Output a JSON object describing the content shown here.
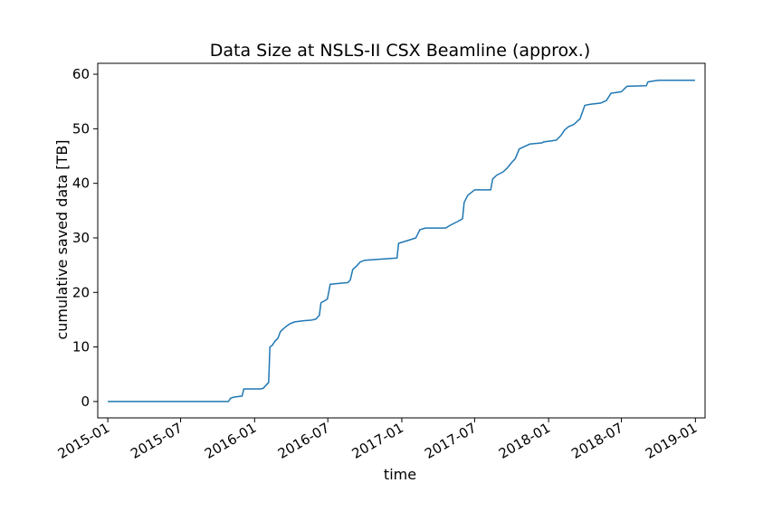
{
  "chart_data": {
    "type": "line",
    "title": "Data Size at NSLS-II CSX Beamline (approx.)",
    "xlabel": "time",
    "ylabel": "cumulative saved data [TB]",
    "xlim": [
      "2014-12-07",
      "2019-01-25"
    ],
    "ylim": [
      -3,
      62
    ],
    "x_ticks": [
      "2015-01",
      "2015-07",
      "2016-01",
      "2016-07",
      "2017-01",
      "2017-07",
      "2018-01",
      "2018-07",
      "2019-01"
    ],
    "y_ticks": [
      0,
      10,
      20,
      30,
      40,
      50,
      60
    ],
    "grid": false,
    "line_color": "#1f77b4",
    "series": [
      {
        "x": [
          "2015-01-01",
          "2015-10-28",
          "2015-11-02",
          "2015-11-10",
          "2015-11-20",
          "2015-12-01",
          "2015-12-05",
          "2016-01-15",
          "2016-01-22",
          "2016-02-05",
          "2016-02-08",
          "2016-02-14",
          "2016-02-20",
          "2016-02-28",
          "2016-03-05",
          "2016-03-12",
          "2016-03-20",
          "2016-03-30",
          "2016-04-10",
          "2016-05-01",
          "2016-05-20",
          "2016-06-01",
          "2016-06-10",
          "2016-06-14",
          "2016-06-24",
          "2016-06-30",
          "2016-07-07",
          "2016-08-20",
          "2016-08-26",
          "2016-09-01",
          "2016-09-10",
          "2016-09-20",
          "2016-10-01",
          "2016-12-20",
          "2016-12-24",
          "2017-01-15",
          "2017-02-05",
          "2017-02-15",
          "2017-03-01",
          "2017-04-20",
          "2017-05-01",
          "2017-05-20",
          "2017-06-01",
          "2017-06-05",
          "2017-06-14",
          "2017-07-01",
          "2017-08-10",
          "2017-08-15",
          "2017-08-25",
          "2017-09-10",
          "2017-09-20",
          "2017-10-01",
          "2017-10-10",
          "2017-10-20",
          "2017-11-15",
          "2017-12-15",
          "2017-12-20",
          "2018-01-20",
          "2018-02-01",
          "2018-02-10",
          "2018-02-20",
          "2018-03-05",
          "2018-03-15",
          "2018-03-20",
          "2018-04-01",
          "2018-04-15",
          "2018-05-10",
          "2018-05-25",
          "2018-06-05",
          "2018-07-01",
          "2018-07-15",
          "2018-09-01",
          "2018-09-05",
          "2018-10-01",
          "2018-12-31"
        ],
        "y": [
          0,
          0,
          0.6,
          0.8,
          0.9,
          1.0,
          2.3,
          2.3,
          2.4,
          3.5,
          10.0,
          10.3,
          11.0,
          11.6,
          12.8,
          13.3,
          13.8,
          14.3,
          14.6,
          14.8,
          14.9,
          15.1,
          15.8,
          18.1,
          18.5,
          18.8,
          21.5,
          21.8,
          22.3,
          24.2,
          24.8,
          25.6,
          25.9,
          26.3,
          29.0,
          29.5,
          30.0,
          31.5,
          31.8,
          31.8,
          32.3,
          33.0,
          33.5,
          36.5,
          37.8,
          38.8,
          38.8,
          40.8,
          41.5,
          42.1,
          42.8,
          43.8,
          44.5,
          46.3,
          47.2,
          47.4,
          47.6,
          47.9,
          48.8,
          49.8,
          50.4,
          50.8,
          51.5,
          51.8,
          54.3,
          54.5,
          54.7,
          55.2,
          56.5,
          56.8,
          57.8,
          57.9,
          58.6,
          58.9,
          58.9
        ]
      }
    ]
  }
}
